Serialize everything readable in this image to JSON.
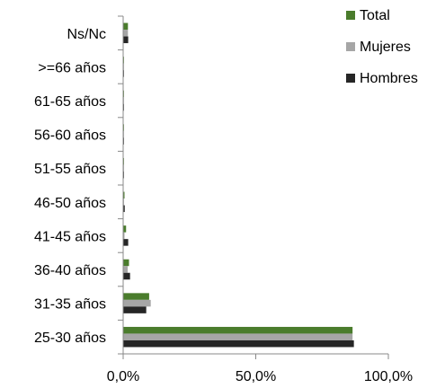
{
  "chart_data": {
    "type": "bar",
    "orientation": "horizontal",
    "categories": [
      "25-30 años",
      "31-35 años",
      "36-40 años",
      "41-45 años",
      "46-50 años",
      "51-55 años",
      "56-60 años",
      "61-65 años",
      ">=66 años",
      "Ns/Nc"
    ],
    "series": [
      {
        "name": "Total",
        "color": "#4a7c2c",
        "values": [
          86.5,
          9.8,
          2.2,
          1.1,
          0.5,
          0.3,
          0.3,
          0.3,
          0.3,
          1.8
        ]
      },
      {
        "name": "Mujeres",
        "color": "#a6a6a6",
        "values": [
          86.5,
          10.4,
          1.7,
          0.5,
          0.3,
          0.3,
          0.3,
          0.3,
          0.3,
          1.8
        ]
      },
      {
        "name": "Hombres",
        "color": "#262626",
        "values": [
          87.0,
          8.7,
          2.6,
          1.9,
          0.6,
          0.3,
          0.3,
          0.3,
          0.3,
          1.9
        ]
      }
    ],
    "xlim": [
      0,
      100
    ],
    "x_ticks": [
      "0,0%",
      "50,0%",
      "100,0%"
    ],
    "legend_position": "top-right",
    "grid": false,
    "title": "",
    "xlabel": "",
    "ylabel": ""
  }
}
